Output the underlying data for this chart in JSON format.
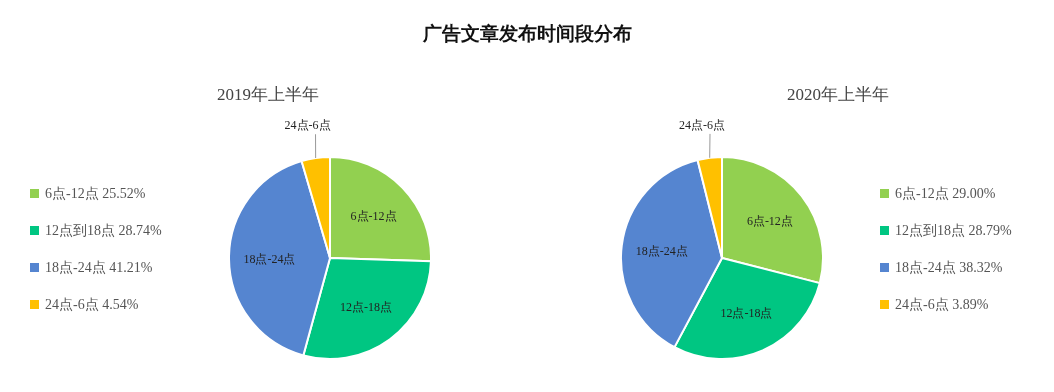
{
  "chart_data": [
    {
      "type": "pie",
      "title": "广告文章发布时间段分布",
      "subtitle": "2019年上半年",
      "categories": [
        "6点-12点",
        "12点到18点",
        "18点-24点",
        "24点-6点"
      ],
      "values": [
        25.52,
        28.74,
        41.21,
        4.54
      ],
      "value_labels": [
        "25.52%",
        "28.74%",
        "41.21%",
        "4.54%"
      ],
      "colors": [
        "#92d050",
        "#00c682",
        "#5585d0",
        "#ffc000"
      ],
      "annotations": [
        "6点-12点",
        "12点-18点",
        "18点-24点",
        "24点-6点"
      ],
      "legend": "left"
    },
    {
      "type": "pie",
      "subtitle": "2020年上半年",
      "categories": [
        "6点-12点",
        "12点到18点",
        "18点-24点",
        "24点-6点"
      ],
      "values": [
        29.0,
        28.79,
        38.32,
        3.89
      ],
      "value_labels": [
        "29.00%",
        "28.79%",
        "38.32%",
        "3.89%"
      ],
      "colors": [
        "#92d050",
        "#00c682",
        "#5585d0",
        "#ffc000"
      ],
      "annotations": [
        "6点-12点",
        "12点-18点",
        "18点-24点",
        "24点-6点"
      ],
      "legend": "right"
    }
  ]
}
